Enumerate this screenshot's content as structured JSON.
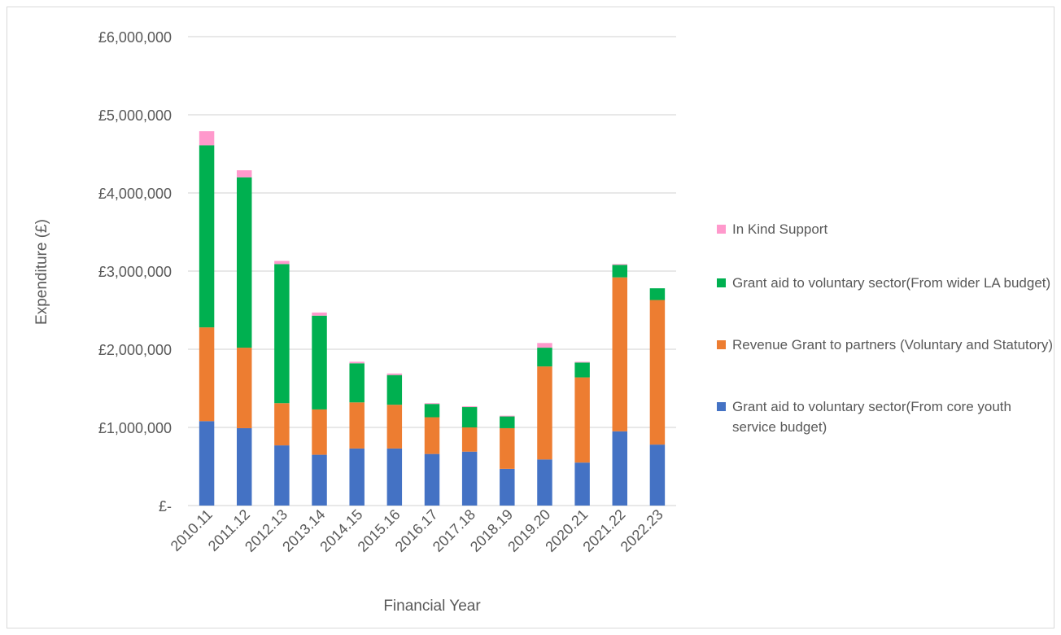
{
  "chart_data": {
    "type": "bar",
    "stacked": true,
    "xlabel": "Financial Year",
    "ylabel": "Expenditure (£)",
    "ylim": [
      0,
      6000000
    ],
    "ytick_values": [
      0,
      1000000,
      2000000,
      3000000,
      4000000,
      5000000,
      6000000
    ],
    "ytick_labels": [
      "£-",
      "£1,000,000",
      "£2,000,000",
      "£3,000,000",
      "£4,000,000",
      "£5,000,000",
      "£6,000,000"
    ],
    "gridlines": true,
    "legend_position": "right",
    "categories": [
      "2010.11",
      "2011.12",
      "2012.13",
      "2013.14",
      "2014.15",
      "2015.16",
      "2016.17",
      "2017.18",
      "2018.19",
      "2019.20",
      "2020.21",
      "2021.22",
      "2022.23"
    ],
    "series": [
      {
        "name": "Grant aid to voluntary sector(From core youth service budget)",
        "color": "#4472c4",
        "values": [
          1080000,
          990000,
          770000,
          650000,
          730000,
          730000,
          660000,
          690000,
          470000,
          590000,
          550000,
          950000,
          780000
        ]
      },
      {
        "name": "Revenue Grant to partners (Voluntary and Statutory)",
        "color": "#ed7d31",
        "values": [
          1200000,
          1030000,
          540000,
          580000,
          590000,
          560000,
          470000,
          310000,
          520000,
          1190000,
          1090000,
          1970000,
          1850000
        ]
      },
      {
        "name": "Grant aid to voluntary sector(From wider LA budget)",
        "color": "#00b050",
        "values": [
          2330000,
          2180000,
          1780000,
          1200000,
          500000,
          380000,
          170000,
          260000,
          150000,
          240000,
          190000,
          160000,
          150000
        ]
      },
      {
        "name": "In Kind Support",
        "color": "#ff99cc",
        "values": [
          180000,
          90000,
          40000,
          40000,
          20000,
          20000,
          10000,
          10000,
          10000,
          60000,
          10000,
          10000,
          0
        ]
      }
    ]
  }
}
